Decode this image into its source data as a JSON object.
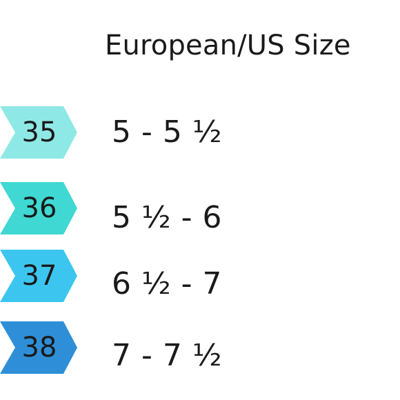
{
  "header": {
    "title": "European/US Size"
  },
  "rows": [
    {
      "eu": "35",
      "us": "5 - 5 ½",
      "color": "#8ee9e6"
    },
    {
      "eu": "36",
      "us": "5 ½ - 6",
      "color": "#3fd8d2"
    },
    {
      "eu": "37",
      "us": "6 ½ - 7",
      "color": "#3cc6ef"
    },
    {
      "eu": "38",
      "us": "7 - 7 ½",
      "color": "#2e8fd8"
    }
  ]
}
